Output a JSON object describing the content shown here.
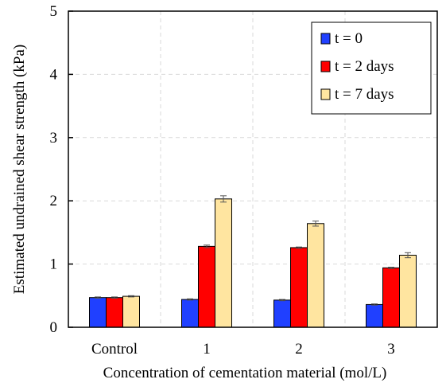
{
  "chart_data": {
    "type": "bar",
    "title": "",
    "xlabel": "Concentration of cementation material (mol/L)",
    "ylabel": "Estimated undrained shear strength (kPa)",
    "ylim": [
      0,
      5
    ],
    "yticks": [
      "0",
      "1",
      "2",
      "3",
      "4",
      "5"
    ],
    "grid": true,
    "legend_position": "top-right",
    "categories": [
      "Control",
      "1",
      "2",
      "3"
    ],
    "series": [
      {
        "name": "t = 0",
        "color": "#2040ff",
        "values": [
          0.47,
          0.44,
          0.43,
          0.36
        ],
        "errors": [
          0.01,
          0.01,
          0.01,
          0.01
        ]
      },
      {
        "name": "t = 2 days",
        "color": "#ff0000",
        "values": [
          0.47,
          1.28,
          1.26,
          0.94
        ],
        "errors": [
          0.01,
          0.02,
          0.01,
          0.01
        ]
      },
      {
        "name": "t = 7 days",
        "color": "#ffe5a0",
        "values": [
          0.49,
          2.03,
          1.64,
          1.14
        ],
        "errors": [
          0.01,
          0.05,
          0.04,
          0.04
        ]
      }
    ]
  }
}
